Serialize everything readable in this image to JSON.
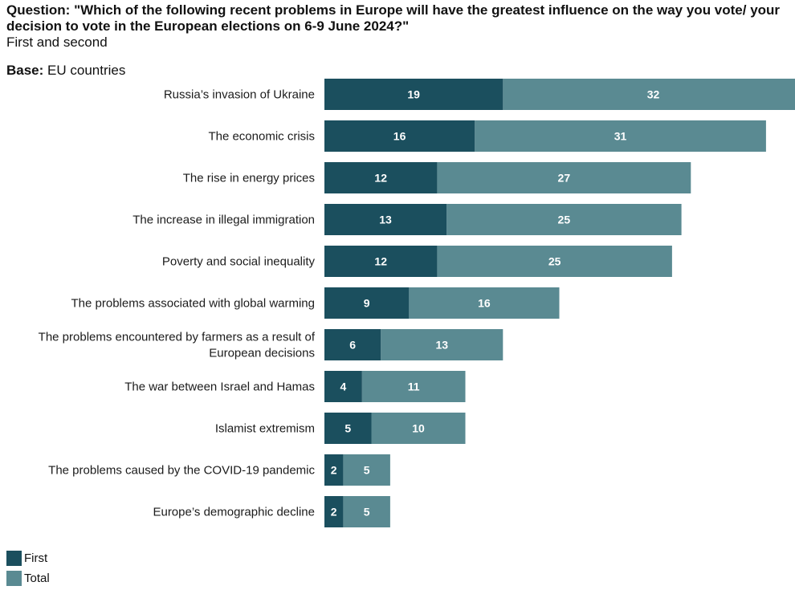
{
  "header": {
    "question_label": "Question:",
    "question_text": "\"Which of the following recent problems in Europe will have the greatest influence on the way you vote/ your decision to vote in the European elections on 6-9 June 2024?\"",
    "subtitle": "First and second"
  },
  "base": {
    "label": "Base:",
    "value": "EU countries"
  },
  "colors": {
    "first": "#1b4f5e",
    "total": "#5a8a92"
  },
  "chart_data": {
    "type": "bar",
    "orientation": "horizontal",
    "stacked": true,
    "categories": [
      [
        "Russia’s invasion of Ukraine"
      ],
      [
        "The economic crisis"
      ],
      [
        "The rise in energy prices"
      ],
      [
        "The increase in illegal immigration"
      ],
      [
        "Poverty and social inequality"
      ],
      [
        "The problems associated with global warming"
      ],
      [
        "The problems encountered by farmers as a result of",
        "European decisions"
      ],
      [
        "The war between Israel and Hamas"
      ],
      [
        "Islamist extremism"
      ],
      [
        "The problems caused by the COVID-19 pandemic"
      ],
      [
        "Europe’s demographic decline"
      ]
    ],
    "series": [
      {
        "name": "First",
        "values": [
          19,
          16,
          12,
          13,
          12,
          9,
          6,
          4,
          5,
          2,
          2
        ]
      },
      {
        "name": "Total",
        "values": [
          32,
          31,
          27,
          25,
          25,
          16,
          13,
          11,
          10,
          5,
          5
        ]
      }
    ],
    "grid": false,
    "legend_position": "bottom-left"
  },
  "legend": {
    "items": [
      {
        "label": "First"
      },
      {
        "label": "Total"
      }
    ]
  }
}
